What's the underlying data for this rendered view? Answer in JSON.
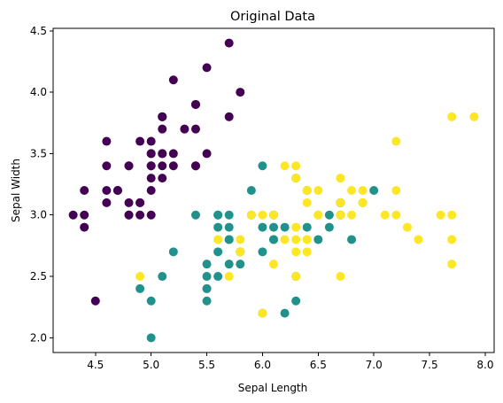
{
  "chart_data": {
    "type": "scatter",
    "title": "Original Data",
    "xlabel": "Sepal Length",
    "ylabel": "Sepal Width",
    "xlim": [
      4.12,
      8.08
    ],
    "ylim": [
      1.88,
      4.52
    ],
    "xticks": [
      "4.5",
      "5.0",
      "5.5",
      "6.0",
      "6.5",
      "7.0",
      "7.5",
      "8.0"
    ],
    "yticks": [
      "2.0",
      "2.5",
      "3.0",
      "3.5",
      "4.0",
      "4.5"
    ],
    "grid": false,
    "legend": "none",
    "series": [
      {
        "color": "#440154",
        "points": [
          [
            5.1,
            3.5
          ],
          [
            4.9,
            3.0
          ],
          [
            4.7,
            3.2
          ],
          [
            4.6,
            3.1
          ],
          [
            5.0,
            3.6
          ],
          [
            5.4,
            3.9
          ],
          [
            4.6,
            3.4
          ],
          [
            5.0,
            3.4
          ],
          [
            4.4,
            2.9
          ],
          [
            4.9,
            3.1
          ],
          [
            5.4,
            3.7
          ],
          [
            4.8,
            3.4
          ],
          [
            4.8,
            3.0
          ],
          [
            4.3,
            3.0
          ],
          [
            5.8,
            4.0
          ],
          [
            5.7,
            4.4
          ],
          [
            5.4,
            3.9
          ],
          [
            5.1,
            3.5
          ],
          [
            5.7,
            3.8
          ],
          [
            5.1,
            3.8
          ],
          [
            5.4,
            3.4
          ],
          [
            5.1,
            3.7
          ],
          [
            4.6,
            3.6
          ],
          [
            5.1,
            3.3
          ],
          [
            4.8,
            3.4
          ],
          [
            5.0,
            3.0
          ],
          [
            5.0,
            3.4
          ],
          [
            5.2,
            3.5
          ],
          [
            5.2,
            3.4
          ],
          [
            4.7,
            3.2
          ],
          [
            4.8,
            3.1
          ],
          [
            5.4,
            3.4
          ],
          [
            5.2,
            4.1
          ],
          [
            5.5,
            4.2
          ],
          [
            4.9,
            3.1
          ],
          [
            5.0,
            3.2
          ],
          [
            5.5,
            3.5
          ],
          [
            4.9,
            3.6
          ],
          [
            4.4,
            3.0
          ],
          [
            5.1,
            3.4
          ],
          [
            5.0,
            3.5
          ],
          [
            4.5,
            2.3
          ],
          [
            4.4,
            3.2
          ],
          [
            5.0,
            3.5
          ],
          [
            5.1,
            3.8
          ],
          [
            4.8,
            3.0
          ],
          [
            5.1,
            3.8
          ],
          [
            4.6,
            3.2
          ],
          [
            5.3,
            3.7
          ],
          [
            5.0,
            3.3
          ]
        ]
      },
      {
        "color": "#21918c",
        "points": [
          [
            7.0,
            3.2
          ],
          [
            6.4,
            3.2
          ],
          [
            6.9,
            3.1
          ],
          [
            5.5,
            2.3
          ],
          [
            6.5,
            2.8
          ],
          [
            5.7,
            2.8
          ],
          [
            6.3,
            3.3
          ],
          [
            4.9,
            2.4
          ],
          [
            6.6,
            2.9
          ],
          [
            5.2,
            2.7
          ],
          [
            5.0,
            2.0
          ],
          [
            5.9,
            3.0
          ],
          [
            6.0,
            2.2
          ],
          [
            6.1,
            2.9
          ],
          [
            5.6,
            2.9
          ],
          [
            6.7,
            3.1
          ],
          [
            5.6,
            3.0
          ],
          [
            5.8,
            2.7
          ],
          [
            6.2,
            2.2
          ],
          [
            5.6,
            2.5
          ],
          [
            5.9,
            3.2
          ],
          [
            6.1,
            2.8
          ],
          [
            6.3,
            2.5
          ],
          [
            6.1,
            2.8
          ],
          [
            6.4,
            2.9
          ],
          [
            6.6,
            3.0
          ],
          [
            6.8,
            2.8
          ],
          [
            6.7,
            3.0
          ],
          [
            6.0,
            2.9
          ],
          [
            5.7,
            2.6
          ],
          [
            5.5,
            2.4
          ],
          [
            5.5,
            2.4
          ],
          [
            5.8,
            2.7
          ],
          [
            6.0,
            2.7
          ],
          [
            5.4,
            3.0
          ],
          [
            6.0,
            3.4
          ],
          [
            6.7,
            3.1
          ],
          [
            6.3,
            2.3
          ],
          [
            5.6,
            3.0
          ],
          [
            5.5,
            2.5
          ],
          [
            5.5,
            2.6
          ],
          [
            6.1,
            3.0
          ],
          [
            5.8,
            2.6
          ],
          [
            5.0,
            2.3
          ],
          [
            5.6,
            2.7
          ],
          [
            5.7,
            3.0
          ],
          [
            5.7,
            2.9
          ],
          [
            6.2,
            2.9
          ],
          [
            5.1,
            2.5
          ],
          [
            5.7,
            2.8
          ]
        ]
      },
      {
        "color": "#fde725",
        "points": [
          [
            6.3,
            3.3
          ],
          [
            5.8,
            2.7
          ],
          [
            7.1,
            3.0
          ],
          [
            6.3,
            2.9
          ],
          [
            6.5,
            3.0
          ],
          [
            7.6,
            3.0
          ],
          [
            4.9,
            2.5
          ],
          [
            7.3,
            2.9
          ],
          [
            6.7,
            2.5
          ],
          [
            7.2,
            3.6
          ],
          [
            6.5,
            3.2
          ],
          [
            6.4,
            2.7
          ],
          [
            6.8,
            3.0
          ],
          [
            5.7,
            2.5
          ],
          [
            5.8,
            2.8
          ],
          [
            6.4,
            3.2
          ],
          [
            6.5,
            3.0
          ],
          [
            7.7,
            3.8
          ],
          [
            7.7,
            2.6
          ],
          [
            6.0,
            2.2
          ],
          [
            6.9,
            3.2
          ],
          [
            5.6,
            2.8
          ],
          [
            7.7,
            2.8
          ],
          [
            6.3,
            2.7
          ],
          [
            6.7,
            3.3
          ],
          [
            7.2,
            3.2
          ],
          [
            6.2,
            2.8
          ],
          [
            6.1,
            3.0
          ],
          [
            6.4,
            2.8
          ],
          [
            7.2,
            3.0
          ],
          [
            7.4,
            2.8
          ],
          [
            7.9,
            3.8
          ],
          [
            6.4,
            2.8
          ],
          [
            6.3,
            2.8
          ],
          [
            6.1,
            2.6
          ],
          [
            7.7,
            3.0
          ],
          [
            6.3,
            3.4
          ],
          [
            6.4,
            3.1
          ],
          [
            6.0,
            3.0
          ],
          [
            6.9,
            3.1
          ],
          [
            6.7,
            3.1
          ],
          [
            6.9,
            3.1
          ],
          [
            5.8,
            2.7
          ],
          [
            6.8,
            3.2
          ],
          [
            6.7,
            3.3
          ],
          [
            6.7,
            3.0
          ],
          [
            6.3,
            2.5
          ],
          [
            6.5,
            3.0
          ],
          [
            6.2,
            3.4
          ],
          [
            5.9,
            3.0
          ]
        ]
      }
    ]
  }
}
